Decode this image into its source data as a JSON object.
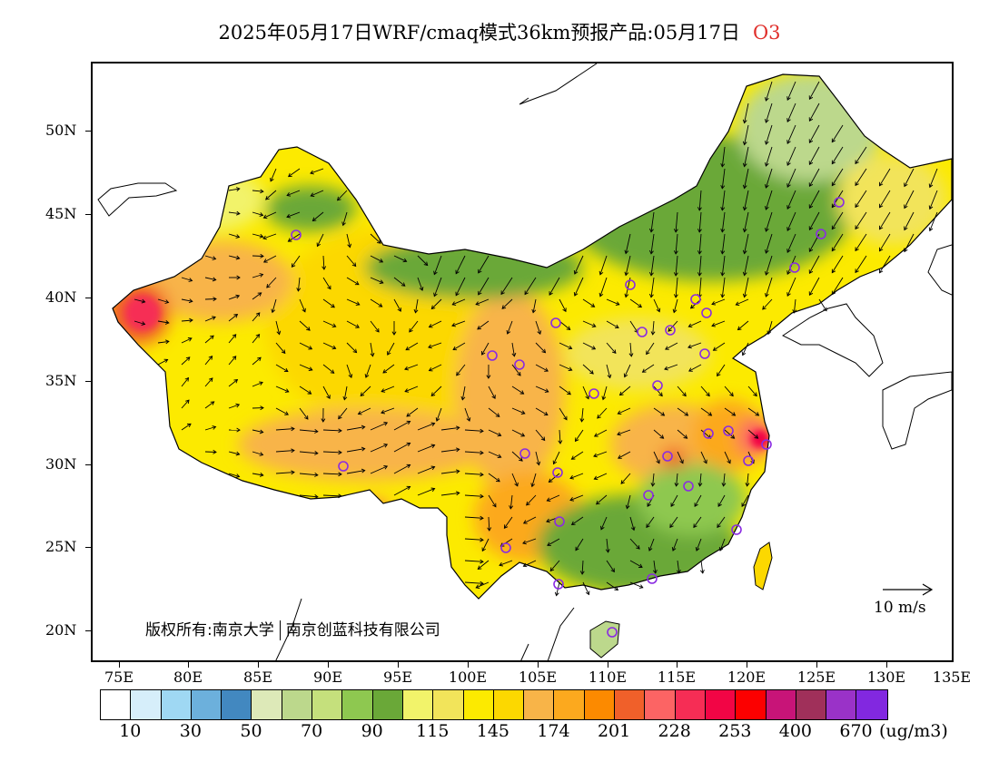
{
  "title": {
    "main": "2025年05月17日WRF/cmaq模式36km预报产品:05月17日",
    "species": "O3"
  },
  "axes": {
    "lat_labels": [
      "50N",
      "45N",
      "40N",
      "35N",
      "30N",
      "25N",
      "20N"
    ],
    "lon_labels": [
      "75E",
      "80E",
      "85E",
      "90E",
      "95E",
      "100E",
      "105E",
      "110E",
      "115E",
      "120E",
      "125E",
      "130E",
      "135E"
    ]
  },
  "copyright": {
    "prefix": "版权所有:南京大学",
    "company": "南京创蓝科技有限公司"
  },
  "reference_vector": {
    "label": "10 m/s"
  },
  "colorbar": {
    "colors": [
      "#ffffff",
      "#d6eefa",
      "#9fd8f3",
      "#6cb0dc",
      "#4288c0",
      "#dde9b8",
      "#bcd88c",
      "#c5e07c",
      "#8ec850",
      "#6aa838",
      "#f2f36a",
      "#f2e45a",
      "#fcea00",
      "#fcd800",
      "#f8b448",
      "#fca91e",
      "#fc8a00",
      "#f0602a",
      "#fc6464",
      "#f62d55",
      "#f20545",
      "#fc0000",
      "#c81478",
      "#a0305a",
      "#9a32c8",
      "#8228e0"
    ],
    "labels": [
      "10",
      "30",
      "50",
      "70",
      "90",
      "115",
      "145",
      "174",
      "201",
      "228",
      "253",
      "400",
      "670"
    ],
    "unit": "(ug/m3)"
  },
  "map": {
    "region": "China",
    "variable": "O3",
    "hotspots": [
      "Kashgar region",
      "Yangtze River Delta",
      "Wuhan area"
    ]
  }
}
